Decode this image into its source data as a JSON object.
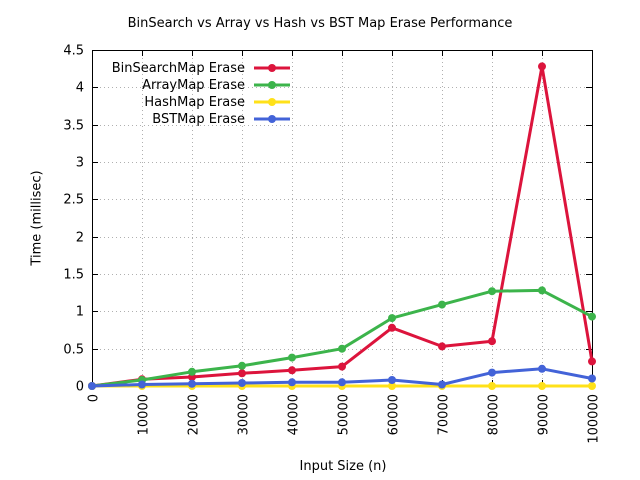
{
  "chart_data": {
    "type": "line",
    "title": "BinSearch vs Array vs Hash vs BST Map Erase Performance",
    "xlabel": "Input Size (n)",
    "ylabel": "Time (millisec)",
    "xlim": [
      0,
      100000
    ],
    "ylim": [
      0,
      4.5
    ],
    "x": [
      0,
      10000,
      20000,
      30000,
      40000,
      50000,
      60000,
      70000,
      80000,
      90000,
      100000
    ],
    "x_tick_labels": [
      "0",
      "10000",
      "20000",
      "30000",
      "40000",
      "50000",
      "60000",
      "70000",
      "80000",
      "90000",
      "100000"
    ],
    "y_ticks": [
      0,
      0.5,
      1,
      1.5,
      2,
      2.5,
      3,
      3.5,
      4,
      4.5
    ],
    "y_tick_labels": [
      "0",
      "0.5",
      "1",
      "1.5",
      "2",
      "2.5",
      "3",
      "3.5",
      "4",
      "4.5"
    ],
    "grid": true,
    "legend_position": "top-left",
    "series": [
      {
        "name": "BinSearchMap Erase",
        "color": "#dc143c",
        "values": [
          0,
          0.09,
          0.12,
          0.17,
          0.21,
          0.26,
          0.78,
          0.53,
          0.6,
          4.28,
          0.33
        ]
      },
      {
        "name": "ArrayMap Erase",
        "color": "#3cb44b",
        "values": [
          0,
          0.08,
          0.19,
          0.27,
          0.38,
          0.5,
          0.91,
          1.09,
          1.27,
          1.28,
          0.93
        ]
      },
      {
        "name": "HashMap Erase",
        "color": "#ffe119",
        "values": [
          0,
          0,
          0,
          0,
          0,
          0,
          0,
          0,
          0,
          0,
          0
        ]
      },
      {
        "name": "BSTMap Erase",
        "color": "#4363d8",
        "values": [
          0,
          0.02,
          0.03,
          0.04,
          0.05,
          0.05,
          0.08,
          0.02,
          0.18,
          0.23,
          0.1
        ]
      }
    ]
  }
}
